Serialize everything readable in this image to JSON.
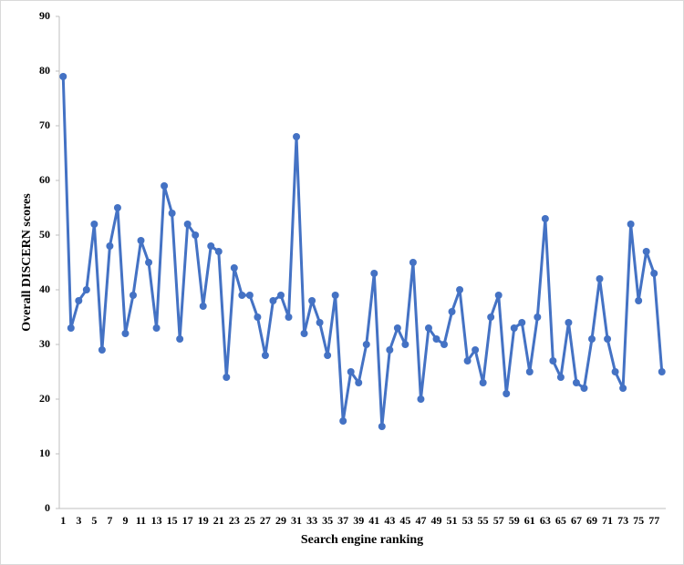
{
  "chart_data": {
    "type": "line",
    "x_label": "Search engine ranking",
    "y_label": "Overall DISCERN scores",
    "categories": [
      "1",
      null,
      "3",
      null,
      "5",
      null,
      "7",
      null,
      "9",
      null,
      "11",
      null,
      "13",
      null,
      "15",
      null,
      "17",
      null,
      "19",
      null,
      "21",
      null,
      "23",
      null,
      "25",
      null,
      "27",
      null,
      "29",
      null,
      "31",
      null,
      "33",
      null,
      "35",
      null,
      "37",
      null,
      "39",
      null,
      "41",
      null,
      "43",
      null,
      "45",
      null,
      "47",
      null,
      "49",
      null,
      "51",
      null,
      "53",
      null,
      "55",
      null,
      "57",
      null,
      "59",
      null,
      "61",
      null,
      "63",
      null,
      "65",
      null,
      "67",
      null,
      "69",
      null,
      "71",
      null,
      "73",
      null,
      "75",
      null,
      "77",
      null
    ],
    "values": [
      79,
      33,
      38,
      40,
      52,
      29,
      48,
      55,
      32,
      39,
      49,
      45,
      33,
      59,
      54,
      31,
      52,
      50,
      37,
      48,
      47,
      24,
      44,
      39,
      39,
      35,
      28,
      38,
      39,
      35,
      68,
      32,
      38,
      34,
      28,
      39,
      16,
      25,
      23,
      30,
      43,
      15,
      29,
      33,
      30,
      45,
      20,
      33,
      31,
      30,
      36,
      40,
      27,
      29,
      23,
      35,
      39,
      21,
      33,
      34,
      25,
      35,
      53,
      27,
      24,
      34,
      23,
      22,
      31,
      42,
      31,
      25,
      22,
      52,
      38,
      47,
      43,
      25
    ],
    "color": "#4472c4",
    "ylim": [
      0,
      90
    ],
    "yticks": [
      0,
      10,
      20,
      30,
      40,
      50,
      60,
      70,
      80,
      90
    ],
    "grid": false
  }
}
